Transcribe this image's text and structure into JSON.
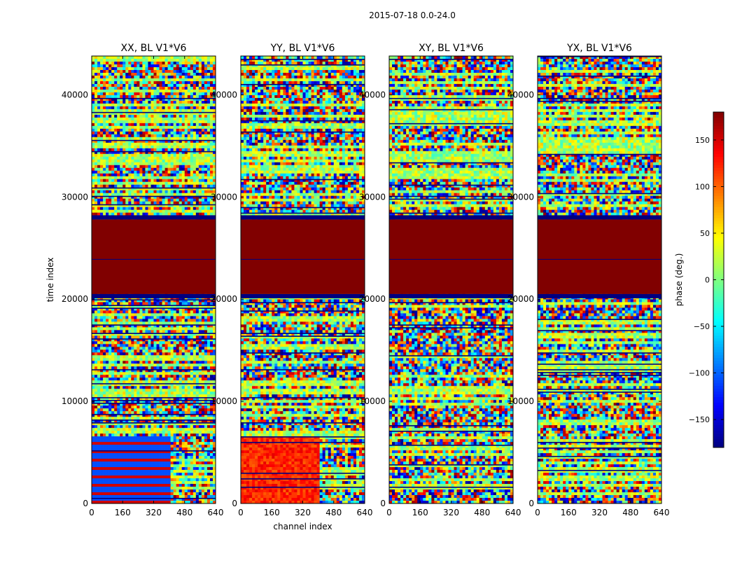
{
  "figure": {
    "suptitle": "2015-07-18 0.0-24.0"
  },
  "colorbar": {
    "label": "phase (deg.)",
    "range": [
      -180,
      180
    ],
    "ticks": [
      150,
      100,
      50,
      0,
      -50,
      -100,
      -150
    ],
    "tick_labels": [
      "150",
      "100",
      "50",
      "0",
      "−50",
      "−100",
      "−150"
    ],
    "colormap": "jet"
  },
  "chart_data": [
    {
      "type": "heatmap",
      "title": "XX, BL V1*V6",
      "xlabel": "",
      "ylabel": "time index",
      "xlim": [
        0,
        640
      ],
      "ylim": [
        0,
        43800
      ],
      "xticks": [
        0,
        160,
        320,
        480,
        640
      ],
      "yticks": [
        0,
        10000,
        20000,
        30000,
        40000
      ],
      "value": "phase (deg.)",
      "constant_bands": [
        {
          "from": 20500,
          "to": 27800,
          "value": 180
        }
      ],
      "notes": [
        "channels 0-400 at times 0-6500 show bands near -100 and 150"
      ]
    },
    {
      "type": "heatmap",
      "title": "YY, BL V1*V6",
      "xlabel": "channel index",
      "ylabel": "",
      "xlim": [
        0,
        640
      ],
      "ylim": [
        0,
        43800
      ],
      "xticks": [
        0,
        160,
        320,
        480,
        640
      ],
      "yticks": [
        0,
        10000,
        20000,
        30000,
        40000
      ],
      "value": "phase (deg.)",
      "constant_bands": [
        {
          "from": 20500,
          "to": 27800,
          "value": 180
        }
      ],
      "notes": [
        "channels 0-400 at times 0-6500 show values near 100-150"
      ]
    },
    {
      "type": "heatmap",
      "title": "XY, BL V1*V6",
      "xlabel": "",
      "ylabel": "",
      "xlim": [
        0,
        640
      ],
      "ylim": [
        0,
        43800
      ],
      "xticks": [
        0,
        160,
        320,
        480,
        640
      ],
      "yticks": [
        0,
        10000,
        20000,
        30000,
        40000
      ],
      "value": "phase (deg.)",
      "constant_bands": [
        {
          "from": 20500,
          "to": 27800,
          "value": 180
        }
      ]
    },
    {
      "type": "heatmap",
      "title": "YX, BL V1*V6",
      "xlabel": "",
      "ylabel": "",
      "xlim": [
        0,
        640
      ],
      "ylim": [
        0,
        43800
      ],
      "xticks": [
        0,
        160,
        320,
        480,
        640
      ],
      "yticks": [
        0,
        10000,
        20000,
        30000,
        40000
      ],
      "value": "phase (deg.)",
      "constant_bands": [
        {
          "from": 20500,
          "to": 27800,
          "value": 180
        }
      ]
    }
  ]
}
